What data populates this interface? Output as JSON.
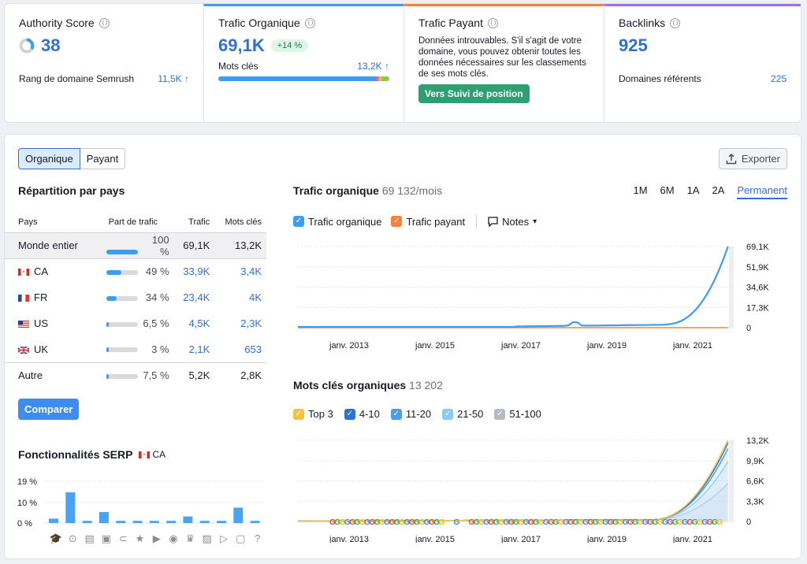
{
  "authority": {
    "title": "Authority Score",
    "value": "38",
    "rank_label": "Rang de domaine Semrush",
    "rank_value": "11,5K ↑"
  },
  "organic": {
    "title": "Trafic Organique",
    "value": "69,1K",
    "change": "+14 %",
    "keywords_label": "Mots clés",
    "keywords_value": "13,2K ↑"
  },
  "paid": {
    "title": "Trafic Payant",
    "message": "Données introuvables. S'il s'agit de votre domaine, vous pouvez obtenir toutes les données nécessaires sur les classements de ses mots clés.",
    "button": "Vers Suivi de position"
  },
  "backlinks": {
    "title": "Backlinks",
    "value": "925",
    "ref_label": "Domaines référents",
    "ref_value": "225"
  },
  "tabs": {
    "organic": "Organique",
    "paid": "Payant"
  },
  "export_label": "Exporter",
  "countries": {
    "title": "Répartition par pays",
    "headers": {
      "country": "Pays",
      "share": "Part de trafic",
      "traffic": "Trafic",
      "keywords": "Mots clés"
    },
    "rows": [
      {
        "name": "Monde entier",
        "share": "100 %",
        "share_frac": 1.0,
        "traffic": "69,1K",
        "keywords": "13,2K"
      },
      {
        "name": "CA",
        "share": "49 %",
        "share_frac": 0.49,
        "traffic": "33,9K",
        "keywords": "3,4K"
      },
      {
        "name": "FR",
        "share": "34 %",
        "share_frac": 0.34,
        "traffic": "23,4K",
        "keywords": "4K"
      },
      {
        "name": "US",
        "share": "6,5 %",
        "share_frac": 0.065,
        "traffic": "4,5K",
        "keywords": "2,3K"
      },
      {
        "name": "UK",
        "share": "3 %",
        "share_frac": 0.03,
        "traffic": "2,1K",
        "keywords": "653"
      },
      {
        "name": "Autre",
        "share": "7,5 %",
        "share_frac": 0.075,
        "traffic": "5,2K",
        "keywords": "2,8K"
      }
    ]
  },
  "compare_button": "Comparer",
  "serp": {
    "title": "Fonctionnalités SERP",
    "country": "CA",
    "y_ticks": [
      "19 %",
      "10 %",
      "0 %"
    ],
    "values": [
      2,
      14,
      1,
      5,
      1,
      1,
      1,
      1,
      3,
      1,
      1,
      7,
      1
    ],
    "icons": [
      "graduation-icon",
      "pin-icon",
      "news-icon",
      "image-icon",
      "link-icon",
      "star-icon",
      "video-icon",
      "play-icon",
      "crown-icon",
      "photo-icon",
      "video2-icon",
      "faq-icon",
      "question-icon"
    ]
  },
  "traffic_chart": {
    "title": "Trafic organique",
    "subtitle": "69 132/mois",
    "periods": [
      "1M",
      "6M",
      "1A",
      "2A",
      "Permanent"
    ],
    "legend": {
      "organic": "Trafic organique",
      "paid": "Trafic payant",
      "notes": "Notes"
    },
    "y_ticks": [
      "69,1K",
      "51,9K",
      "34,6K",
      "17,3K",
      "0"
    ],
    "x_ticks": [
      "janv. 2013",
      "janv. 2015",
      "janv. 2017",
      "janv. 2019",
      "janv. 2021"
    ]
  },
  "keywords_chart": {
    "title": "Mots clés organiques",
    "subtitle": "13 202",
    "legend": [
      "Top 3",
      "4-10",
      "11-20",
      "21-50",
      "51-100"
    ],
    "legend_colors": [
      "#f2c43b",
      "#2e6fdc",
      "#4a9cf0",
      "#8fc8f8",
      "#b8bac1"
    ],
    "y_ticks": [
      "13,2K",
      "9,9K",
      "6,6K",
      "3,3K",
      "0"
    ],
    "x_ticks": [
      "janv. 2013",
      "janv. 2015",
      "janv. 2017",
      "janv. 2019",
      "janv. 2021"
    ]
  },
  "colors": {
    "accent": "#2e6fdc",
    "green": "#2e9f72",
    "chart_blue": "#3d9df0",
    "orange": "#f5813f"
  }
}
